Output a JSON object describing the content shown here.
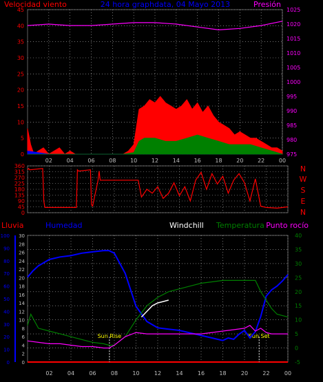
{
  "colors": {
    "wind_speed": "#ff0000",
    "wind_gust": "#0000ff",
    "wind_avg": "#008000",
    "pressure": "#ff00ff",
    "direction": "#ff0000",
    "rain": "#ff0000",
    "humidity": "#0000ff",
    "windchill": "#ffffff",
    "temperature": "#008000",
    "dewpoint": "#ff00ff",
    "sun_marker": "#ffff00",
    "grid": "#c0c0c0",
    "axis_text": "#c0c0c0"
  },
  "header": {
    "left": "Velocidad viento",
    "center": "24 hora graphdata, 04 Mayo 2013",
    "right": "Presión"
  },
  "dir_labels": [
    "N",
    "W",
    "S",
    "E",
    "N"
  ],
  "bottom_header": {
    "rain": "Lluvia",
    "humidity": "Humedad",
    "windchill": "Windchill",
    "temperature": "Temperatura",
    "dewpoint": "Punto rocío"
  },
  "sun": {
    "rise": "Sun Rise",
    "set": "Sun Set"
  },
  "chart_data": [
    {
      "type": "area",
      "title": "24 hora graphdata, 04 Mayo 2013",
      "x_ticks": [
        "02",
        "04",
        "06",
        "08",
        "10",
        "12",
        "14",
        "16",
        "18",
        "20",
        "22",
        "00"
      ],
      "y_left_ticks": [
        0,
        5,
        10,
        15,
        20,
        25,
        30,
        35,
        40,
        45
      ],
      "y_right_ticks": [
        975,
        980,
        985,
        990,
        995,
        1000,
        1005,
        1010,
        1015,
        1020,
        1025
      ],
      "left_range": [
        0,
        45
      ],
      "right_range": [
        975,
        1025
      ],
      "x_range_hours": [
        0,
        24
      ],
      "series": [
        {
          "name": "Velocidad viento",
          "axis": "left",
          "x": [
            0,
            0.3,
            0.6,
            1,
            1.5,
            2,
            2.5,
            3,
            3.5,
            4,
            4.5,
            5,
            5.5,
            6,
            6.5,
            7,
            7.5,
            8,
            8.5,
            9,
            9.5,
            10,
            10.5,
            11,
            11.5,
            12,
            12.5,
            13,
            13.5,
            14,
            14.5,
            15,
            15.5,
            16,
            16.5,
            17,
            17.5,
            18,
            18.5,
            19,
            19.5,
            20,
            20.5,
            21,
            21.5,
            22,
            22.5,
            23,
            23.5,
            24
          ],
          "values": [
            8,
            3,
            0,
            1,
            2,
            0,
            1,
            2,
            0,
            1,
            0,
            0,
            0,
            0,
            0,
            0,
            0,
            0,
            0,
            0,
            1,
            3,
            14,
            15,
            17,
            16,
            18,
            16,
            15,
            14,
            15,
            17,
            14,
            16,
            13,
            15,
            12,
            10,
            9,
            8,
            6,
            7,
            6,
            5,
            5,
            4,
            3,
            2,
            2,
            1
          ]
        },
        {
          "name": "Racha",
          "axis": "left",
          "x": [
            0,
            2,
            4,
            6,
            8,
            9,
            10,
            10.5,
            11,
            12,
            13,
            14,
            15,
            16,
            17,
            18,
            19,
            20,
            21,
            22,
            23,
            24
          ],
          "values": [
            1,
            0,
            0,
            0,
            0,
            0,
            0.5,
            3,
            4,
            4,
            3,
            4,
            4,
            5,
            4,
            3,
            3,
            2,
            2,
            1,
            1,
            0
          ]
        },
        {
          "name": "Media",
          "axis": "left",
          "x": [
            0,
            2,
            4,
            6,
            8,
            9,
            10,
            10.5,
            11,
            12,
            13,
            14,
            15,
            16,
            17,
            18,
            19,
            20,
            21,
            22,
            23,
            24
          ],
          "values": [
            0,
            0,
            0,
            0,
            0,
            0,
            0.5,
            4,
            5,
            5,
            4,
            4,
            5,
            6,
            5,
            4,
            3,
            3,
            3,
            2,
            1,
            0
          ]
        },
        {
          "name": "Presión",
          "axis": "right",
          "x": [
            0,
            2,
            4,
            6,
            8,
            10,
            12,
            14,
            16,
            18,
            20,
            22,
            24
          ],
          "values": [
            1019.5,
            1020,
            1019.5,
            1019.5,
            1020,
            1020.5,
            1020.5,
            1020,
            1019,
            1018,
            1018.5,
            1019.5,
            1021
          ]
        }
      ]
    },
    {
      "type": "line",
      "y_ticks": [
        0,
        45,
        90,
        135,
        180,
        225,
        270,
        315,
        360
      ],
      "y_range": [
        0,
        360
      ],
      "x_ticks": [
        "02",
        "04",
        "06",
        "08",
        "10",
        "12",
        "14",
        "16",
        "18",
        "20",
        "22",
        "00"
      ],
      "x_range_hours": [
        0,
        24
      ],
      "series": [
        {
          "name": "Dirección",
          "x": [
            0,
            0.1,
            0.2,
            1.4,
            1.5,
            1.6,
            2,
            4,
            4.5,
            4.6,
            4.7,
            5.8,
            5.9,
            6,
            6.5,
            6.6,
            6.7,
            8,
            9,
            10.2,
            10.5,
            11,
            11.5,
            12,
            12.5,
            13,
            13.5,
            14,
            14.5,
            15,
            15.5,
            16,
            16.5,
            17,
            17.5,
            18,
            18.5,
            19,
            19.5,
            20,
            20.5,
            21,
            21.5,
            22,
            23,
            24
          ],
          "values": [
            330,
            340,
            330,
            340,
            90,
            40,
            40,
            40,
            40,
            330,
            320,
            330,
            60,
            50,
            250,
            320,
            250,
            250,
            250,
            250,
            120,
            180,
            150,
            200,
            110,
            150,
            230,
            130,
            200,
            90,
            250,
            310,
            180,
            300,
            220,
            280,
            150,
            250,
            300,
            230,
            90,
            260,
            50,
            40,
            35,
            45
          ]
        }
      ]
    },
    {
      "type": "line",
      "x_ticks": [
        "02",
        "04",
        "06",
        "08",
        "10",
        "12",
        "14",
        "16",
        "18",
        "20",
        "22",
        "00"
      ],
      "x_range_hours": [
        0,
        24
      ],
      "humidity_ticks": [
        0,
        10,
        20,
        30,
        40,
        50,
        60,
        70,
        80,
        90,
        100
      ],
      "rain_ticks": [
        0,
        2,
        4,
        6,
        8,
        10,
        12,
        14,
        16,
        18,
        20,
        22,
        24,
        26,
        28,
        30
      ],
      "temp_ticks": [
        -5,
        0,
        5,
        10,
        15,
        20,
        25,
        30,
        35,
        40
      ],
      "humidity_range": [
        0,
        100
      ],
      "rain_range": [
        0,
        30
      ],
      "temp_range": [
        -5,
        40
      ],
      "sunrise_hour": 7.55,
      "sunset_hour": 21.35,
      "series": [
        {
          "name": "Lluvia",
          "axis": "rain",
          "x": [
            0,
            24
          ],
          "values": [
            0,
            0
          ]
        },
        {
          "name": "Humedad",
          "axis": "humidity",
          "x": [
            0,
            0.5,
            1,
            2,
            3,
            4,
            5,
            6,
            7,
            7.5,
            8,
            9,
            10,
            11,
            12,
            13,
            14,
            15,
            16,
            17,
            18,
            18.5,
            19,
            19.5,
            20,
            20.5,
            21,
            21.5,
            22,
            22.5,
            23,
            23.5,
            24
          ],
          "values": [
            67,
            72,
            76,
            81,
            83,
            84,
            86,
            87,
            88,
            88,
            86,
            70,
            44,
            32,
            27,
            26,
            25,
            23,
            21,
            19,
            17,
            19,
            18,
            22,
            25,
            19,
            24,
            36,
            52,
            57,
            60,
            64,
            69
          ]
        },
        {
          "name": "Windchill",
          "axis": "temp",
          "x": [
            10.5,
            11,
            11.5,
            12,
            12.5,
            13
          ],
          "values": [
            11,
            13,
            15,
            16,
            16.5,
            17
          ]
        },
        {
          "name": "Temperatura",
          "axis": "temp",
          "x": [
            0,
            0.3,
            1,
            2,
            3,
            4,
            5,
            6,
            7,
            7.5,
            8,
            9,
            10,
            11,
            12,
            13,
            14,
            15,
            16,
            17,
            18,
            19,
            20,
            21,
            21.5,
            22,
            22.5,
            23,
            24
          ],
          "values": [
            8,
            12,
            7,
            6,
            5,
            4,
            3,
            2,
            1.5,
            1,
            1,
            4,
            10,
            15,
            18,
            20,
            21,
            22,
            23,
            23.5,
            24,
            24,
            24,
            24,
            20,
            17,
            14,
            12,
            11
          ]
        },
        {
          "name": "Punto rocío",
          "axis": "temp",
          "x": [
            0,
            1,
            2,
            3,
            4,
            5,
            6,
            7,
            7.5,
            8,
            9,
            10,
            11,
            12,
            13,
            14,
            15,
            16,
            17,
            18,
            19,
            20,
            20.5,
            21,
            21.5,
            22,
            22.5,
            23,
            24
          ],
          "values": [
            2.5,
            2,
            1.5,
            1.5,
            1,
            0.5,
            0.5,
            0,
            0,
            1,
            4,
            5.5,
            5,
            5,
            5,
            5,
            5,
            5,
            5.5,
            6,
            6.5,
            7,
            8,
            6,
            7,
            5.5,
            5,
            5,
            5
          ]
        }
      ]
    }
  ]
}
